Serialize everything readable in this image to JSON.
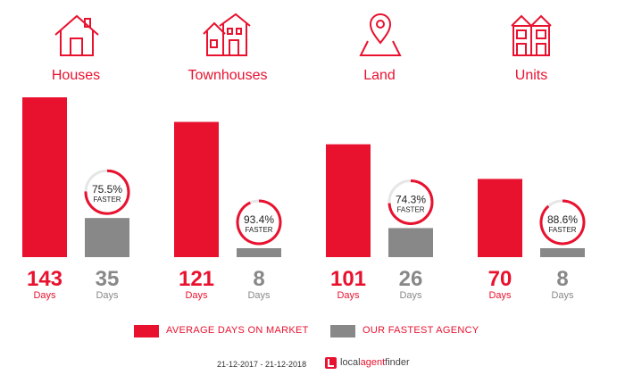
{
  "chart_data": {
    "type": "bar",
    "categories": [
      "Houses",
      "Townhouses",
      "Land",
      "Units"
    ],
    "series": [
      {
        "name": "AVERAGE DAYS ON MARKET",
        "values": [
          143,
          121,
          101,
          70
        ],
        "color": "#e8122f"
      },
      {
        "name": "OUR FASTEST AGENCY",
        "values": [
          35,
          8,
          26,
          8
        ],
        "color": "#888888"
      }
    ],
    "unit_label": "Days",
    "faster": [
      "75.5%",
      "93.4%",
      "74.3%",
      "88.6%"
    ],
    "faster_fraction": [
      0.755,
      0.934,
      0.743,
      0.886
    ],
    "faster_label": "FASTER",
    "ylim": [
      0,
      143
    ],
    "legend": "bottom",
    "grid": false
  },
  "icons": [
    "house-icon",
    "townhouse-icon",
    "land-pin-icon",
    "units-building-icon"
  ],
  "legend": {
    "avg": "AVERAGE DAYS ON MARKET",
    "fast": "OUR FASTEST AGENCY"
  },
  "footer": {
    "date_range": "21-12-2017 - 21-12-2018",
    "brand_prefix": "local",
    "brand_accent": "agent",
    "brand_suffix": "finder"
  },
  "colors": {
    "accent": "#e8122f",
    "grey": "#888888"
  }
}
